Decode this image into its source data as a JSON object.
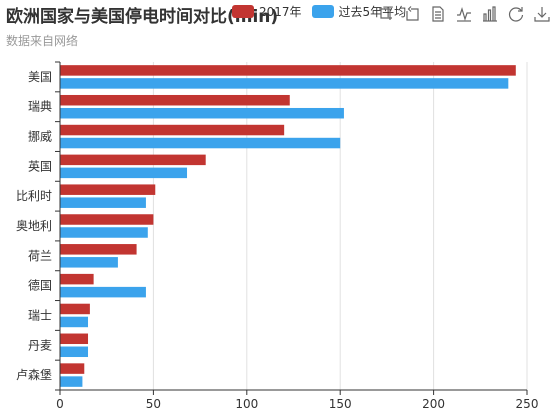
{
  "title": "欧洲国家与美国停电时间对比(min)",
  "subtitle": "数据来自网络",
  "legend": {
    "items": [
      {
        "name": "2017年",
        "color": "#c23531",
        "icon": "rounded-rect"
      },
      {
        "name": "过去5年平均",
        "color": "#3ba3ec",
        "icon": "rounded-rect"
      }
    ]
  },
  "toolbox": [
    {
      "name": "zoom-in-icon",
      "tip": "区域缩放"
    },
    {
      "name": "zoom-reset-icon",
      "tip": "区域缩放还原"
    },
    {
      "name": "data-view-icon",
      "tip": "数据视图"
    },
    {
      "name": "line-chart-icon",
      "tip": "切换为折线图"
    },
    {
      "name": "bar-chart-icon",
      "tip": "切换为柱状图"
    },
    {
      "name": "restore-icon",
      "tip": "还原"
    },
    {
      "name": "save-image-icon",
      "tip": "保存为图片"
    }
  ],
  "chart_data": {
    "type": "bar",
    "orientation": "horizontal",
    "categories": [
      "美国",
      "瑞典",
      "挪威",
      "英国",
      "比利时",
      "奥地利",
      "荷兰",
      "德国",
      "瑞士",
      "丹麦",
      "卢森堡"
    ],
    "series": [
      {
        "name": "2017年",
        "color": "#c23531",
        "values": [
          244,
          123,
          120,
          78,
          51,
          50,
          41,
          18,
          16,
          15,
          13
        ]
      },
      {
        "name": "过去5年平均",
        "color": "#3ba3ec",
        "values": [
          240,
          152,
          150,
          68,
          46,
          47,
          31,
          46,
          15,
          15,
          12
        ]
      }
    ],
    "xlim": [
      0,
      250
    ],
    "xticks": [
      0,
      50,
      100,
      150,
      200,
      250
    ],
    "grid": "vertical"
  }
}
